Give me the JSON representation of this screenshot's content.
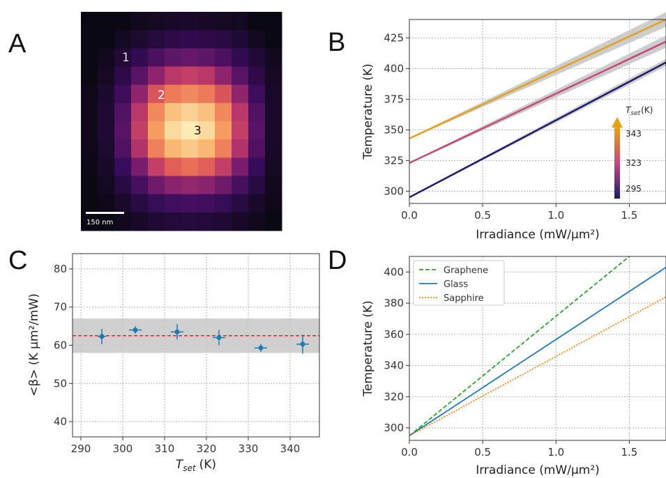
{
  "panels": {
    "a": "A",
    "b": "B",
    "c": "C",
    "d": "D"
  },
  "colors": {
    "inferno_dark": "#0a0812",
    "graphene": "#2ca02c",
    "glass": "#1f77b4",
    "sapphire": "#ff7f0e",
    "mean_line": "#e8221e",
    "band": "#c8c8c8",
    "series_343": "#e3a21a",
    "series_323": "#c24a7c",
    "series_295": "#1c1b6b"
  },
  "heatmap": {
    "scale_bar_label": "150 nm",
    "point_labels": [
      "1",
      "2",
      "3"
    ],
    "grid": [
      [
        0.0,
        0.0,
        0.0,
        0.03,
        0.05,
        0.06,
        0.07,
        0.06,
        0.05,
        0.04,
        0.0,
        0.0
      ],
      [
        0.0,
        0.0,
        0.04,
        0.08,
        0.12,
        0.15,
        0.16,
        0.15,
        0.13,
        0.09,
        0.04,
        0.0
      ],
      [
        0.0,
        0.03,
        0.1,
        0.18,
        0.26,
        0.32,
        0.34,
        0.32,
        0.26,
        0.18,
        0.1,
        0.03
      ],
      [
        0.0,
        0.05,
        0.15,
        0.3,
        0.45,
        0.55,
        0.58,
        0.55,
        0.45,
        0.3,
        0.15,
        0.05
      ],
      [
        0.02,
        0.08,
        0.22,
        0.45,
        0.65,
        0.75,
        0.78,
        0.75,
        0.65,
        0.45,
        0.22,
        0.06
      ],
      [
        0.02,
        0.09,
        0.28,
        0.55,
        0.78,
        0.9,
        0.94,
        0.9,
        0.78,
        0.55,
        0.28,
        0.07
      ],
      [
        0.02,
        0.09,
        0.3,
        0.58,
        0.82,
        0.96,
        1.0,
        0.96,
        0.82,
        0.58,
        0.3,
        0.07
      ],
      [
        0.02,
        0.08,
        0.27,
        0.53,
        0.76,
        0.88,
        0.92,
        0.88,
        0.76,
        0.53,
        0.27,
        0.06
      ],
      [
        0.01,
        0.06,
        0.2,
        0.4,
        0.58,
        0.68,
        0.72,
        0.68,
        0.58,
        0.4,
        0.2,
        0.05
      ],
      [
        0.0,
        0.04,
        0.13,
        0.25,
        0.37,
        0.44,
        0.46,
        0.44,
        0.37,
        0.25,
        0.13,
        0.03
      ],
      [
        0.0,
        0.02,
        0.07,
        0.13,
        0.19,
        0.23,
        0.24,
        0.23,
        0.19,
        0.13,
        0.07,
        0.02
      ],
      [
        0.0,
        0.0,
        0.03,
        0.06,
        0.09,
        0.11,
        0.12,
        0.11,
        0.09,
        0.06,
        0.03,
        0.0
      ]
    ]
  },
  "chart_data": [
    {
      "panel": "B",
      "type": "line",
      "xlabel": "Irradiance (mW/μm²)",
      "ylabel": "Temperature (K)",
      "xlim": [
        0.0,
        1.75
      ],
      "ylim": [
        290,
        440
      ],
      "xticks": [
        "0.0",
        "0.5",
        "1.0",
        "1.5"
      ],
      "yticks": [
        "300",
        "325",
        "350",
        "375",
        "400",
        "425"
      ],
      "grid": true,
      "colorbar": {
        "title_main": "T",
        "title_sub": "set",
        "title_unit": "(K)",
        "ticks": [
          "343",
          "323",
          "295"
        ],
        "placement": "right"
      },
      "series": [
        {
          "x": [
            0.0,
            1.75
          ],
          "y": [
            343,
            440
          ],
          "band": 6
        },
        {
          "x": [
            0.0,
            1.75
          ],
          "y": [
            323,
            422
          ],
          "band": 5
        },
        {
          "x": [
            0.0,
            1.75
          ],
          "y": [
            295,
            405
          ],
          "band": 3
        }
      ]
    },
    {
      "panel": "C",
      "type": "scatter",
      "xlabel_main": "T",
      "xlabel_sub": "set",
      "xlabel_unit": "(K)",
      "ylabel": "<β> (K μm²/mW)",
      "xlim": [
        288,
        347
      ],
      "ylim": [
        36,
        84
      ],
      "xticks": [
        "290",
        "300",
        "310",
        "320",
        "330",
        "340"
      ],
      "yticks": [
        "40",
        "50",
        "60",
        "70",
        "80"
      ],
      "grid": true,
      "mean": 62.5,
      "band": [
        58,
        67
      ],
      "points": [
        {
          "x": 295,
          "y": 62.3,
          "xerr": 1.0,
          "yerr": 2.0
        },
        {
          "x": 303,
          "y": 64.0,
          "xerr": 1.5,
          "yerr": 1.0
        },
        {
          "x": 313,
          "y": 63.5,
          "xerr": 1.5,
          "yerr": 2.0
        },
        {
          "x": 323,
          "y": 62.0,
          "xerr": 1.5,
          "yerr": 2.0
        },
        {
          "x": 333,
          "y": 59.3,
          "xerr": 1.5,
          "yerr": 1.0
        },
        {
          "x": 343,
          "y": 60.3,
          "xerr": 1.5,
          "yerr": 2.5
        }
      ]
    },
    {
      "panel": "D",
      "type": "line",
      "xlabel": "Irradiance (mW/μm²)",
      "ylabel": "Temperature (K)",
      "xlim": [
        0.0,
        1.75
      ],
      "ylim": [
        292,
        410
      ],
      "xticks": [
        "0.0",
        "0.5",
        "1.0",
        "1.5"
      ],
      "yticks": [
        "300",
        "320",
        "340",
        "360",
        "380",
        "400"
      ],
      "grid": true,
      "legend": "top-left",
      "series": [
        {
          "name": "Graphene",
          "style": "dashed",
          "x": [
            0.0,
            1.5
          ],
          "y": [
            295,
            410
          ]
        },
        {
          "name": "Glass",
          "style": "solid",
          "x": [
            0.0,
            1.75
          ],
          "y": [
            295,
            403
          ]
        },
        {
          "name": "Sapphire",
          "style": "dotted",
          "x": [
            0.0,
            1.75
          ],
          "y": [
            295,
            384
          ]
        }
      ]
    }
  ]
}
